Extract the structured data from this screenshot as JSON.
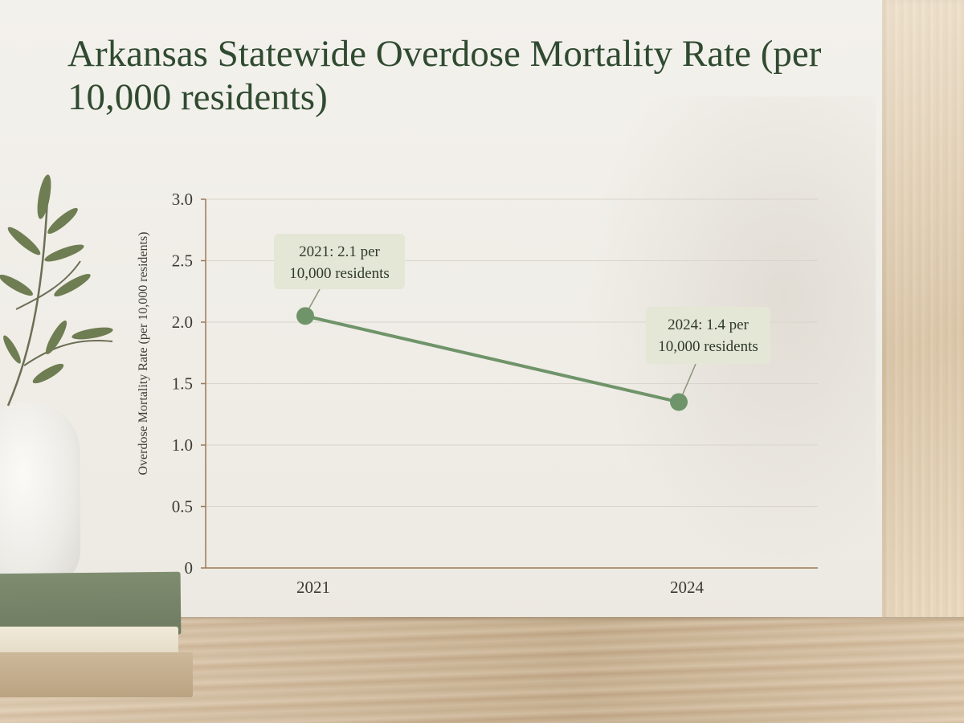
{
  "chart_data": {
    "type": "line",
    "title": "Arkansas Statewide Overdose Mortality Rate (per 10,000 residents)",
    "xlabel": "",
    "ylabel": "Overdose Mortality Rate (per 10,000 residents)",
    "categories": [
      "2021",
      "2024"
    ],
    "series": [
      {
        "values": [
          2.05,
          1.35
        ]
      }
    ],
    "ylim": [
      0,
      3.0
    ],
    "yticks": [
      0,
      0.5,
      1.0,
      1.5,
      2.0,
      2.5,
      3.0
    ],
    "ytick_labels": [
      "0",
      "0.5",
      "1.0",
      "1.5",
      "2.0",
      "2.5",
      "3.0"
    ],
    "grid": true,
    "annotations": [
      {
        "line1": "2021: 2.1 per",
        "line2": "10,000 residents"
      },
      {
        "line1": "2024: 1.4 per",
        "line2": "10,000 residents"
      }
    ],
    "colors": {
      "line": "#6f9469",
      "callout_bg": "#e4e6d6",
      "axis": "#9a7a57",
      "title": "#2f4a30"
    }
  }
}
